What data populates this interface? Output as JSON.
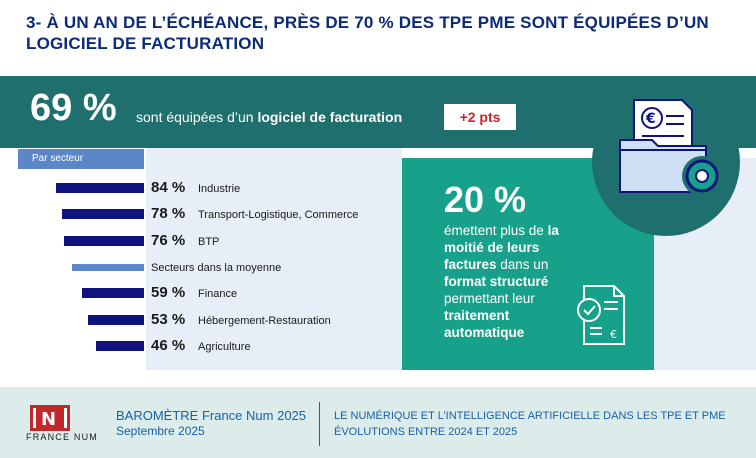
{
  "header": {
    "title": "3- À UN AN DE L’ÉCHÉANCE, PRÈS DE 70 % DES TPE PME SONT ÉQUIPÉES D’UN LOGICIEL DE FACTURATION"
  },
  "banner": {
    "big_value": "69 %",
    "text_before": "sont équipées d’un ",
    "text_bold": "logiciel de facturation",
    "delta": "+2 pts"
  },
  "sector_tab": "Par secteur",
  "sectors": [
    {
      "value": "84 %",
      "name": "Industrie",
      "share": 84
    },
    {
      "value": "78 %",
      "name": "Transport-Logistique, Commerce",
      "share": 78
    },
    {
      "value": "76 %",
      "name": "BTP",
      "share": 76
    },
    {
      "value": "",
      "name": "Secteurs dans la moyenne",
      "share": 69
    },
    {
      "value": "59 %",
      "name": "Finance",
      "share": 59
    },
    {
      "value": "53 %",
      "name": "Hébergement-Restauration",
      "share": 53
    },
    {
      "value": "46 %",
      "name": "Agriculture",
      "share": 46
    }
  ],
  "card": {
    "value": "20 %",
    "text_1": "émettent plus de ",
    "bold_1": "la moitié de leurs factures",
    "text_2": " dans un ",
    "bold_2": "format structuré",
    "text_3": " permettant leur ",
    "bold_3": "traitement automatique"
  },
  "footer": {
    "logo_text": "FRANCE NUM",
    "barometer": "BAROMÈTRE France Num 2025",
    "date": "Septembre 2025",
    "subtitle_1": "LE NUMÉRIQUE ET L’INTELLIGENCE ARTIFICIELLE DANS LES TPE ET PME",
    "subtitle_2": "ÉVOLUTIONS ENTRE 2024 ET 2025"
  },
  "colors": {
    "title": "#0b2a7a",
    "banner": "#1f6f6e",
    "card": "#18a18a",
    "bar": "#10137e",
    "bar_average": "#5b86c7",
    "delta": "#c0282a",
    "footer_text": "#1b5fa8",
    "logo": "#c0282a"
  },
  "icons": [
    "invoice-folder-gear-icon",
    "invoice-check-icon",
    "france-num-logo-icon"
  ]
}
